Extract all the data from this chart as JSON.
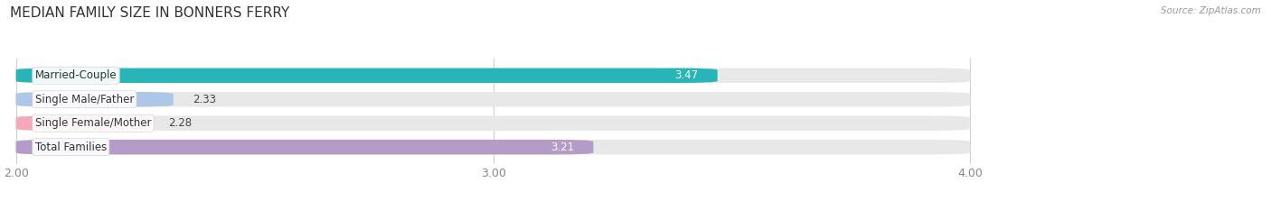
{
  "title": "MEDIAN FAMILY SIZE IN BONNERS FERRY",
  "source": "Source: ZipAtlas.com",
  "categories": [
    "Married-Couple",
    "Single Male/Father",
    "Single Female/Mother",
    "Total Families"
  ],
  "values": [
    3.47,
    2.33,
    2.28,
    3.21
  ],
  "bar_colors": [
    "#29b5b8",
    "#aec6e8",
    "#f4a8bc",
    "#b59cc8"
  ],
  "xmin": 2.0,
  "xmax": 4.0,
  "xticks": [
    2.0,
    3.0,
    4.0
  ],
  "bar_height": 0.62,
  "background_color": "#ffffff",
  "bar_bg_color": "#e8e8e8",
  "title_fontsize": 11,
  "label_fontsize": 8.5,
  "value_fontsize": 8.5,
  "tick_fontsize": 9,
  "value_inside": [
    true,
    false,
    false,
    true
  ]
}
